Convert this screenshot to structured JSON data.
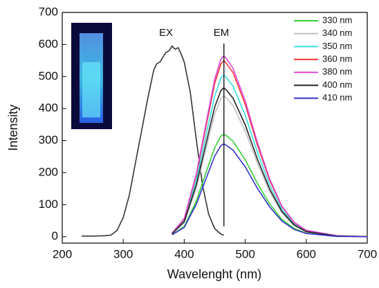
{
  "chart_data": {
    "type": "line",
    "x_label": "Wavelenght (nm)",
    "y_label": "Intensity",
    "xlim": [
      200,
      700
    ],
    "ylim": [
      -20,
      700
    ],
    "xticks": [
      200,
      300,
      400,
      500,
      600,
      700
    ],
    "yticks": [
      0,
      100,
      200,
      300,
      400,
      500,
      600,
      700
    ],
    "annotations": [
      "EX",
      "EM"
    ],
    "em_line_x": 465,
    "series": [
      {
        "color": "#333333",
        "x": [
          232,
          250,
          270,
          280,
          290,
          300,
          310,
          320,
          330,
          340,
          350,
          355,
          360,
          365,
          370,
          375,
          380,
          385,
          390,
          395,
          400,
          410,
          420,
          430,
          440,
          450,
          460,
          465
        ],
        "values": [
          2,
          2,
          3,
          5,
          20,
          60,
          130,
          230,
          330,
          430,
          520,
          540,
          545,
          560,
          575,
          580,
          595,
          585,
          590,
          570,
          545,
          450,
          300,
          160,
          70,
          25,
          8,
          5
        ]
      },
      {
        "name": "330 nm",
        "color": "#33cc33",
        "x": [
          380,
          400,
          420,
          440,
          450,
          460,
          465,
          470,
          480,
          500,
          520,
          540,
          560,
          580,
          600,
          650,
          700
        ],
        "values": [
          6,
          32,
          112,
          224,
          278,
          314,
          320,
          314,
          298,
          240,
          166,
          102,
          54,
          26,
          11,
          2,
          0
        ]
      },
      {
        "name": "340 nm",
        "color": "#c0c0c0",
        "x": [
          380,
          400,
          420,
          440,
          450,
          460,
          465,
          470,
          480,
          500,
          520,
          540,
          560,
          580,
          600,
          650,
          700
        ],
        "values": [
          9,
          44,
          154,
          308,
          383,
          431,
          440,
          431,
          409,
          330,
          229,
          141,
          75,
          35,
          15,
          2,
          0
        ]
      },
      {
        "name": "350 nm",
        "color": "#33dddd",
        "x": [
          380,
          400,
          420,
          440,
          450,
          460,
          465,
          470,
          480,
          500,
          520,
          540,
          560,
          580,
          600,
          650,
          700
        ],
        "values": [
          10,
          51,
          177,
          354,
          439,
          495,
          505,
          495,
          470,
          379,
          263,
          162,
          86,
          40,
          18,
          3,
          0
        ]
      },
      {
        "name": "360 nm",
        "color": "#ee3333",
        "x": [
          380,
          400,
          420,
          440,
          450,
          460,
          465,
          470,
          480,
          500,
          520,
          540,
          560,
          580,
          600,
          650,
          700
        ],
        "values": [
          11,
          55,
          193,
          385,
          479,
          539,
          550,
          539,
          512,
          413,
          286,
          176,
          94,
          44,
          19,
          3,
          0
        ]
      },
      {
        "name": "380 nm",
        "color": "#dd44dd",
        "x": [
          380,
          400,
          420,
          440,
          450,
          460,
          465,
          470,
          480,
          500,
          520,
          540,
          560,
          580,
          600,
          650,
          700
        ],
        "values": [
          11,
          57,
          198,
          396,
          492,
          554,
          565,
          554,
          525,
          424,
          294,
          181,
          96,
          45,
          20,
          3,
          0
        ]
      },
      {
        "name": "400 nm",
        "color": "#222222",
        "x": [
          380,
          400,
          420,
          440,
          450,
          460,
          465,
          470,
          480,
          500,
          520,
          540,
          560,
          580,
          600,
          650,
          700
        ],
        "values": [
          9,
          47,
          163,
          326,
          405,
          456,
          465,
          456,
          432,
          349,
          242,
          149,
          79,
          37,
          16,
          2,
          0
        ]
      },
      {
        "name": "410 nm",
        "color": "#3333cc",
        "x": [
          380,
          400,
          420,
          440,
          450,
          460,
          465,
          470,
          480,
          500,
          520,
          540,
          560,
          580,
          600,
          650,
          700
        ],
        "values": [
          6,
          29,
          102,
          203,
          252,
          284,
          290,
          284,
          270,
          218,
          151,
          93,
          49,
          23,
          10,
          1,
          0
        ]
      }
    ]
  }
}
